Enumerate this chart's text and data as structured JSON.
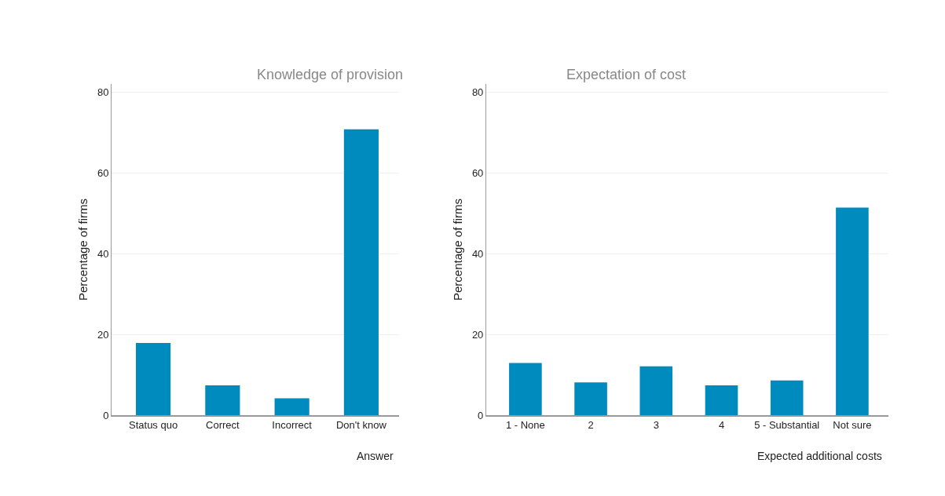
{
  "chart_data": [
    {
      "type": "bar",
      "title": "Knowledge of provision",
      "xlabel": "Answer",
      "ylabel": "Percentage of firms",
      "categories": [
        "Status quo",
        "Correct",
        "Incorrect",
        "Don't know"
      ],
      "values": [
        17.9,
        7.4,
        4.2,
        70.8
      ],
      "color": "#008bbf",
      "ylim": [
        0,
        82
      ],
      "yticks": [
        0,
        20,
        40,
        60,
        80
      ],
      "grid": "y"
    },
    {
      "type": "bar",
      "title": "Expectation of cost",
      "xlabel": "Expected additional costs",
      "ylabel": "Percentage of firms",
      "categories": [
        "1 - None",
        "2",
        "3",
        "4",
        "5 - Substantial",
        "Not sure"
      ],
      "values": [
        12.9,
        8.1,
        12.1,
        7.4,
        8.6,
        51.4
      ],
      "color": "#008bbf",
      "ylim": [
        0,
        82
      ],
      "yticks": [
        0,
        20,
        40,
        60,
        80
      ],
      "grid": "y"
    }
  ]
}
